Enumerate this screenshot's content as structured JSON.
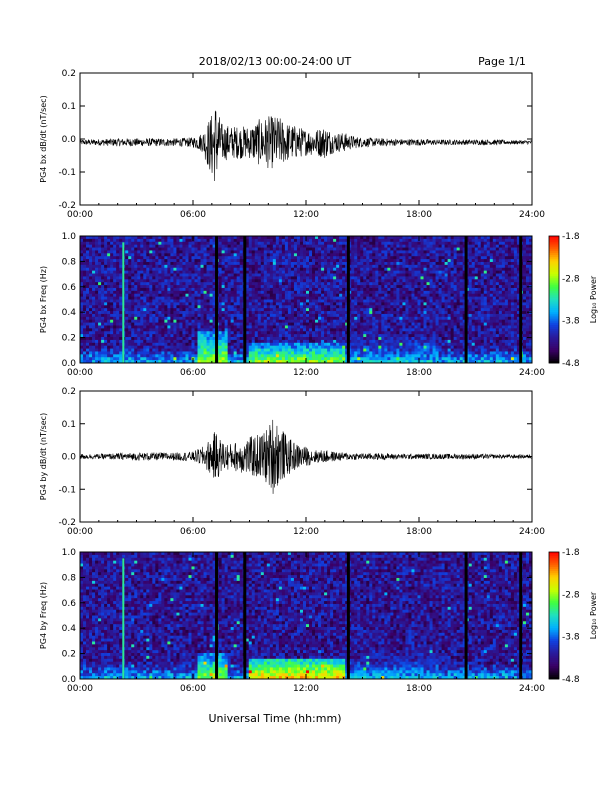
{
  "header": {
    "title": "2018/02/13  00:00-24:00 UT",
    "page": "Page 1/1"
  },
  "footer": {
    "xlabel": "Universal Time (hh:mm)"
  },
  "x_ticks": [
    "00:00",
    "06:00",
    "12:00",
    "18:00",
    "24:00"
  ],
  "colorbar": {
    "label": "Log₁₀ Power",
    "ticks": [
      "-1.8",
      "-2.8",
      "-3.8",
      "-4.8"
    ],
    "range": [
      -4.8,
      -1.8
    ],
    "colormap": [
      "#000000",
      "#3a0066",
      "#2a1a9a",
      "#1040e0",
      "#00b0ff",
      "#20e0c0",
      "#40ff40",
      "#c8ff00",
      "#ffd000",
      "#ff6000",
      "#ff0000"
    ]
  },
  "chart_data": [
    {
      "type": "line",
      "ylabel": "PG4 bx dB/dt (nT/sec)",
      "xlim": [
        "00:00",
        "24:00"
      ],
      "ylim": [
        -0.2,
        0.2
      ],
      "yticks": [
        "0.2",
        "0.1",
        "0.0",
        "-0.1",
        "-0.2"
      ],
      "series": [
        {
          "hours": [
            0,
            1,
            2,
            3,
            4,
            5,
            6,
            6.5,
            7,
            7.2,
            7.5,
            8,
            8.5,
            9,
            9.5,
            10,
            10.5,
            11,
            11.5,
            12,
            12.5,
            13,
            13.5,
            14,
            14.5,
            15,
            16,
            17,
            18,
            19,
            20,
            21,
            22,
            23,
            24
          ],
          "center": [
            -0.01,
            -0.01,
            -0.01,
            -0.01,
            -0.01,
            -0.01,
            -0.01,
            -0.01,
            -0.02,
            -0.01,
            -0.01,
            -0.01,
            -0.01,
            -0.01,
            -0.01,
            -0.01,
            -0.01,
            -0.01,
            -0.01,
            -0.01,
            -0.01,
            -0.01,
            -0.01,
            -0.01,
            -0.01,
            -0.01,
            -0.01,
            -0.01,
            -0.01,
            -0.01,
            -0.01,
            -0.01,
            -0.01,
            -0.01,
            -0.01
          ],
          "amplitude": [
            0.008,
            0.01,
            0.012,
            0.012,
            0.012,
            0.012,
            0.015,
            0.03,
            0.1,
            0.13,
            0.06,
            0.05,
            0.05,
            0.05,
            0.07,
            0.08,
            0.08,
            0.06,
            0.05,
            0.04,
            0.04,
            0.05,
            0.03,
            0.03,
            0.02,
            0.015,
            0.012,
            0.01,
            0.01,
            0.008,
            0.008,
            0.008,
            0.008,
            0.006,
            0.006
          ]
        }
      ]
    },
    {
      "type": "heatmap",
      "ylabel": "PG4 bx Freq (Hz)",
      "xlim": [
        "00:00",
        "24:00"
      ],
      "ylim": [
        0.0,
        1.0
      ],
      "yticks": [
        "1.0",
        "0.8",
        "0.6",
        "0.4",
        "0.2",
        "0.0"
      ],
      "gaps_hours": [
        7.25,
        8.75,
        14.25,
        20.5,
        23.4
      ],
      "line_hours": [
        2.3
      ],
      "events": [
        {
          "hours": [
            6.2,
            7.8
          ],
          "freq_top": 0.25,
          "log_power": -2.8
        },
        {
          "hours": [
            9.0,
            14.0
          ],
          "freq_top": 0.15,
          "log_power": -2.8
        },
        {
          "hours": [
            14.0,
            19.0
          ],
          "freq_top": 0.3,
          "log_power": -3.6
        }
      ]
    },
    {
      "type": "line",
      "ylabel": "PG4 by dB/dt (nT/sec)",
      "xlim": [
        "00:00",
        "24:00"
      ],
      "ylim": [
        -0.2,
        0.2
      ],
      "yticks": [
        "0.2",
        "0.1",
        "0.0",
        "-0.1",
        "-0.2"
      ],
      "series": [
        {
          "hours": [
            0,
            1,
            2,
            3,
            4,
            5,
            6,
            6.5,
            7,
            7.2,
            7.5,
            8,
            8.5,
            9,
            9.5,
            10,
            10.3,
            10.5,
            11,
            11.5,
            12,
            12.5,
            13,
            13.5,
            14,
            15,
            16,
            17,
            18,
            19,
            20,
            21,
            22,
            23,
            24
          ],
          "center": [
            0.0,
            0.0,
            0.0,
            0.0,
            0.0,
            0.0,
            0.0,
            0.0,
            0.0,
            0.0,
            0.0,
            0.0,
            0.0,
            0.0,
            0.0,
            0.0,
            0.01,
            0.01,
            0.0,
            0.0,
            0.0,
            0.0,
            0.0,
            0.0,
            0.0,
            0.0,
            0.0,
            0.0,
            0.0,
            0.0,
            0.0,
            0.0,
            0.0,
            0.0,
            0.0
          ],
          "amplitude": [
            0.008,
            0.008,
            0.01,
            0.012,
            0.012,
            0.012,
            0.015,
            0.03,
            0.06,
            0.08,
            0.05,
            0.04,
            0.05,
            0.06,
            0.07,
            0.09,
            0.13,
            0.1,
            0.06,
            0.04,
            0.03,
            0.02,
            0.02,
            0.015,
            0.012,
            0.01,
            0.01,
            0.008,
            0.008,
            0.008,
            0.008,
            0.008,
            0.006,
            0.006,
            0.006
          ]
        }
      ]
    },
    {
      "type": "heatmap",
      "ylabel": "PG4 by Freq (Hz)",
      "xlim": [
        "00:00",
        "24:00"
      ],
      "ylim": [
        0.0,
        1.0
      ],
      "yticks": [
        "1.0",
        "0.8",
        "0.6",
        "0.4",
        "0.2",
        "0.0"
      ],
      "gaps_hours": [
        7.25,
        8.75,
        14.25,
        20.5,
        23.4
      ],
      "line_hours": [
        2.3
      ],
      "events": [
        {
          "hours": [
            6.2,
            7.8
          ],
          "freq_top": 0.2,
          "log_power": -2.8
        },
        {
          "hours": [
            9.0,
            14.0
          ],
          "freq_top": 0.15,
          "log_power": -2.4
        },
        {
          "hours": [
            14.0,
            19.0
          ],
          "freq_top": 0.25,
          "log_power": -3.6
        }
      ]
    }
  ]
}
